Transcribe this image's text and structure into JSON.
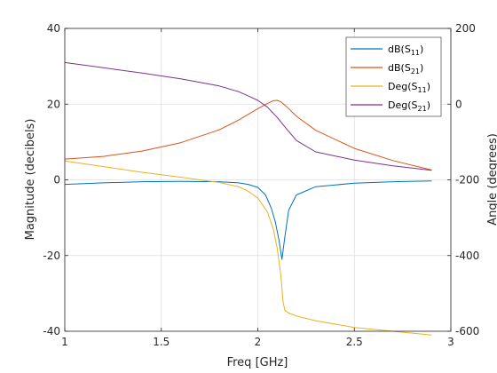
{
  "chart_data": {
    "type": "line",
    "title": "",
    "xlabel": "Freq [GHz]",
    "ylabel_left": "Magnitude (decibels)",
    "ylabel_right": "Angle (degrees)",
    "xlim": [
      1,
      3
    ],
    "ylim_left": [
      -40,
      40
    ],
    "ylim_right": [
      -600,
      200
    ],
    "x_ticks": [
      1,
      1.5,
      2,
      2.5,
      3
    ],
    "x_tick_labels": [
      "1",
      "1.5",
      "2",
      "2.5",
      "3"
    ],
    "y_left_ticks": [
      40,
      20,
      0,
      -20,
      -40
    ],
    "y_left_tick_labels": [
      "40",
      "20",
      "0",
      "-20",
      "-40"
    ],
    "y_right_ticks": [
      200,
      0,
      -200,
      -400,
      -600
    ],
    "y_right_tick_labels": [
      "200",
      "0",
      "-200",
      "-400",
      "-600"
    ],
    "grid": true,
    "legend_position": "top-right",
    "series": [
      {
        "name": "dB(S11)",
        "label_base": "dB(S",
        "label_sub": "11",
        "label_end": ")",
        "axis": "left",
        "color": "#0072BD",
        "x": [
          1.0,
          1.2,
          1.4,
          1.6,
          1.8,
          1.9,
          1.95,
          2.0,
          2.04,
          2.07,
          2.09,
          2.11,
          2.125,
          2.14,
          2.16,
          2.2,
          2.3,
          2.5,
          2.7,
          2.9
        ],
        "y": [
          -1.2,
          -0.8,
          -0.5,
          -0.4,
          -0.5,
          -0.8,
          -1.2,
          -2.0,
          -4.0,
          -7.5,
          -11.0,
          -16.0,
          -21.0,
          -15.0,
          -8.0,
          -4.0,
          -1.8,
          -0.9,
          -0.5,
          -0.3
        ]
      },
      {
        "name": "dB(S21)",
        "label_base": "dB(S",
        "label_sub": "21",
        "label_end": ")",
        "axis": "left",
        "color": "#D95319",
        "x": [
          1.0,
          1.2,
          1.4,
          1.6,
          1.8,
          1.9,
          1.95,
          2.0,
          2.05,
          2.08,
          2.1,
          2.12,
          2.15,
          2.2,
          2.3,
          2.5,
          2.7,
          2.9
        ],
        "y": [
          5.5,
          6.2,
          7.6,
          9.8,
          13.2,
          15.8,
          17.3,
          18.8,
          20.2,
          20.9,
          21.0,
          20.6,
          19.3,
          16.8,
          13.1,
          8.3,
          5.1,
          2.6
        ]
      },
      {
        "name": "Deg(S11)",
        "label_base": "Deg(S",
        "label_sub": "11",
        "label_end": ")",
        "axis": "right",
        "color": "#EDB120",
        "x": [
          1.0,
          1.2,
          1.4,
          1.6,
          1.8,
          1.9,
          1.95,
          2.0,
          2.05,
          2.08,
          2.1,
          2.12,
          2.13,
          2.14,
          2.16,
          2.2,
          2.3,
          2.5,
          2.7,
          2.9
        ],
        "y": [
          -150,
          -165,
          -180,
          -193,
          -207,
          -218,
          -230,
          -248,
          -285,
          -330,
          -380,
          -455,
          -520,
          -545,
          -552,
          -560,
          -572,
          -590,
          -600,
          -610
        ]
      },
      {
        "name": "Deg(S21)",
        "label_base": "Deg(S",
        "label_sub": "21",
        "label_end": ")",
        "axis": "right",
        "color": "#7E2F8E",
        "x": [
          1.0,
          1.2,
          1.4,
          1.6,
          1.8,
          1.9,
          1.95,
          2.0,
          2.05,
          2.1,
          2.15,
          2.2,
          2.3,
          2.5,
          2.7,
          2.9
        ],
        "y": [
          110,
          96,
          82,
          67,
          48,
          33,
          22,
          10,
          -8,
          -35,
          -66,
          -96,
          -126,
          -148,
          -163,
          -175
        ]
      }
    ]
  }
}
